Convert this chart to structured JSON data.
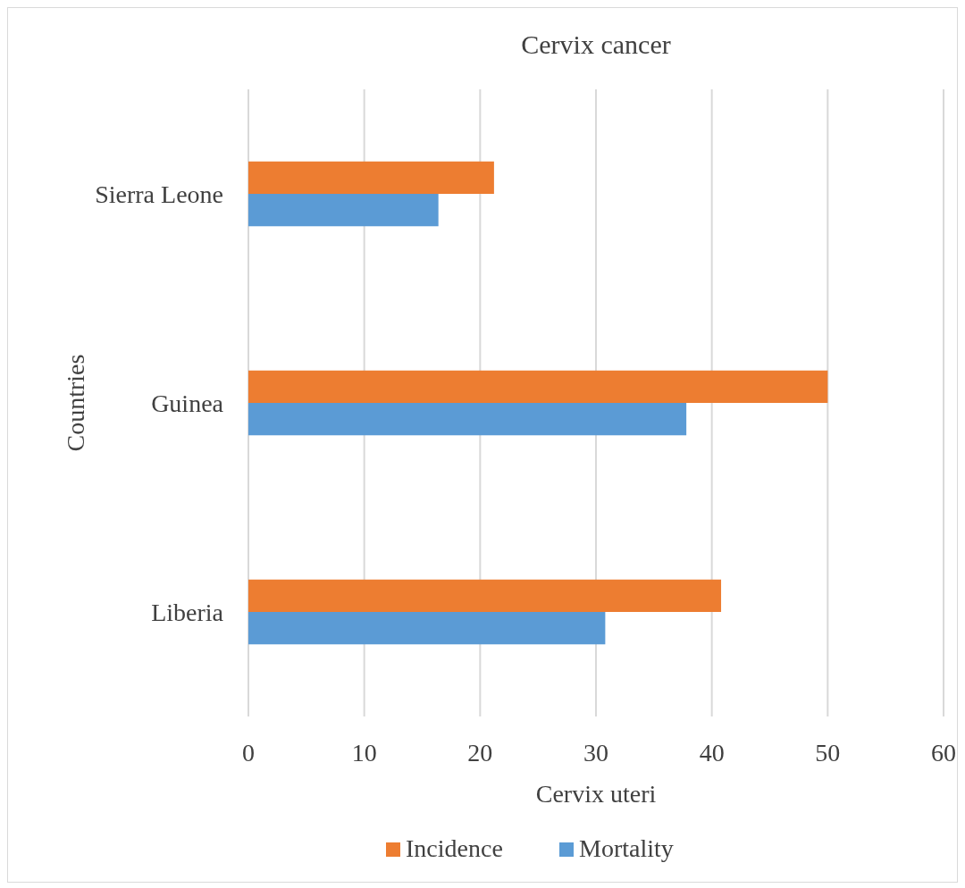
{
  "chart_data": {
    "type": "bar",
    "orientation": "horizontal",
    "title": "Cervix cancer",
    "xlabel": "Cervix uteri",
    "ylabel": "Countries",
    "categories": [
      "Sierra Leone",
      "Guinea",
      "Liberia"
    ],
    "series": [
      {
        "name": "Incidence",
        "color": "#ed7d31",
        "values": [
          21.2,
          50.0,
          40.8
        ]
      },
      {
        "name": "Mortality",
        "color": "#5b9bd5",
        "values": [
          16.4,
          37.8,
          30.8
        ]
      }
    ],
    "xlim": [
      0,
      60
    ],
    "xticks": [
      0,
      10,
      20,
      30,
      40,
      50,
      60
    ],
    "grid": "x",
    "legend": "bottom"
  }
}
